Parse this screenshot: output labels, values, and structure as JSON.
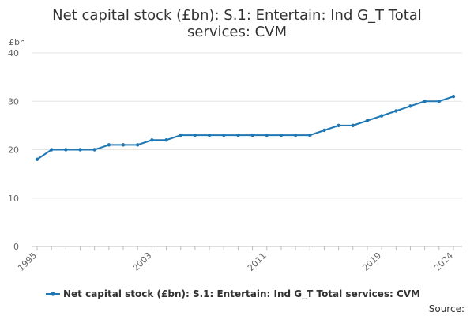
{
  "chart_data": {
    "type": "line",
    "title_lines": [
      "Net capital stock (£bn): S.1: Entertain: Ind G_T Total",
      "services: CVM"
    ],
    "ylabel": "£bn",
    "xlabel": "",
    "ylim": [
      0,
      40
    ],
    "y_ticks": [
      "0",
      "10",
      "20",
      "30",
      "40"
    ],
    "x_tick_labels": [
      "1995",
      "2003",
      "2011",
      "2019",
      "2024"
    ],
    "grid": "horizontal",
    "legend_position": "bottom",
    "series": [
      {
        "name": "Net capital stock (£bn): S.1: Entertain: Ind G_T Total services: CVM",
        "color": "#1f77b4",
        "x": [
          1995,
          1996,
          1997,
          1998,
          1999,
          2000,
          2001,
          2002,
          2003,
          2004,
          2005,
          2006,
          2007,
          2008,
          2009,
          2010,
          2011,
          2012,
          2013,
          2014,
          2015,
          2016,
          2017,
          2018,
          2019,
          2020,
          2021,
          2022,
          2023,
          2024
        ],
        "values": [
          18,
          20,
          20,
          20,
          20,
          21,
          21,
          21,
          22,
          22,
          23,
          23,
          23,
          23,
          23,
          23,
          23,
          23,
          23,
          23,
          24,
          25,
          25,
          26,
          27,
          28,
          29,
          30,
          30,
          31
        ]
      }
    ],
    "source_label": "Source:"
  }
}
